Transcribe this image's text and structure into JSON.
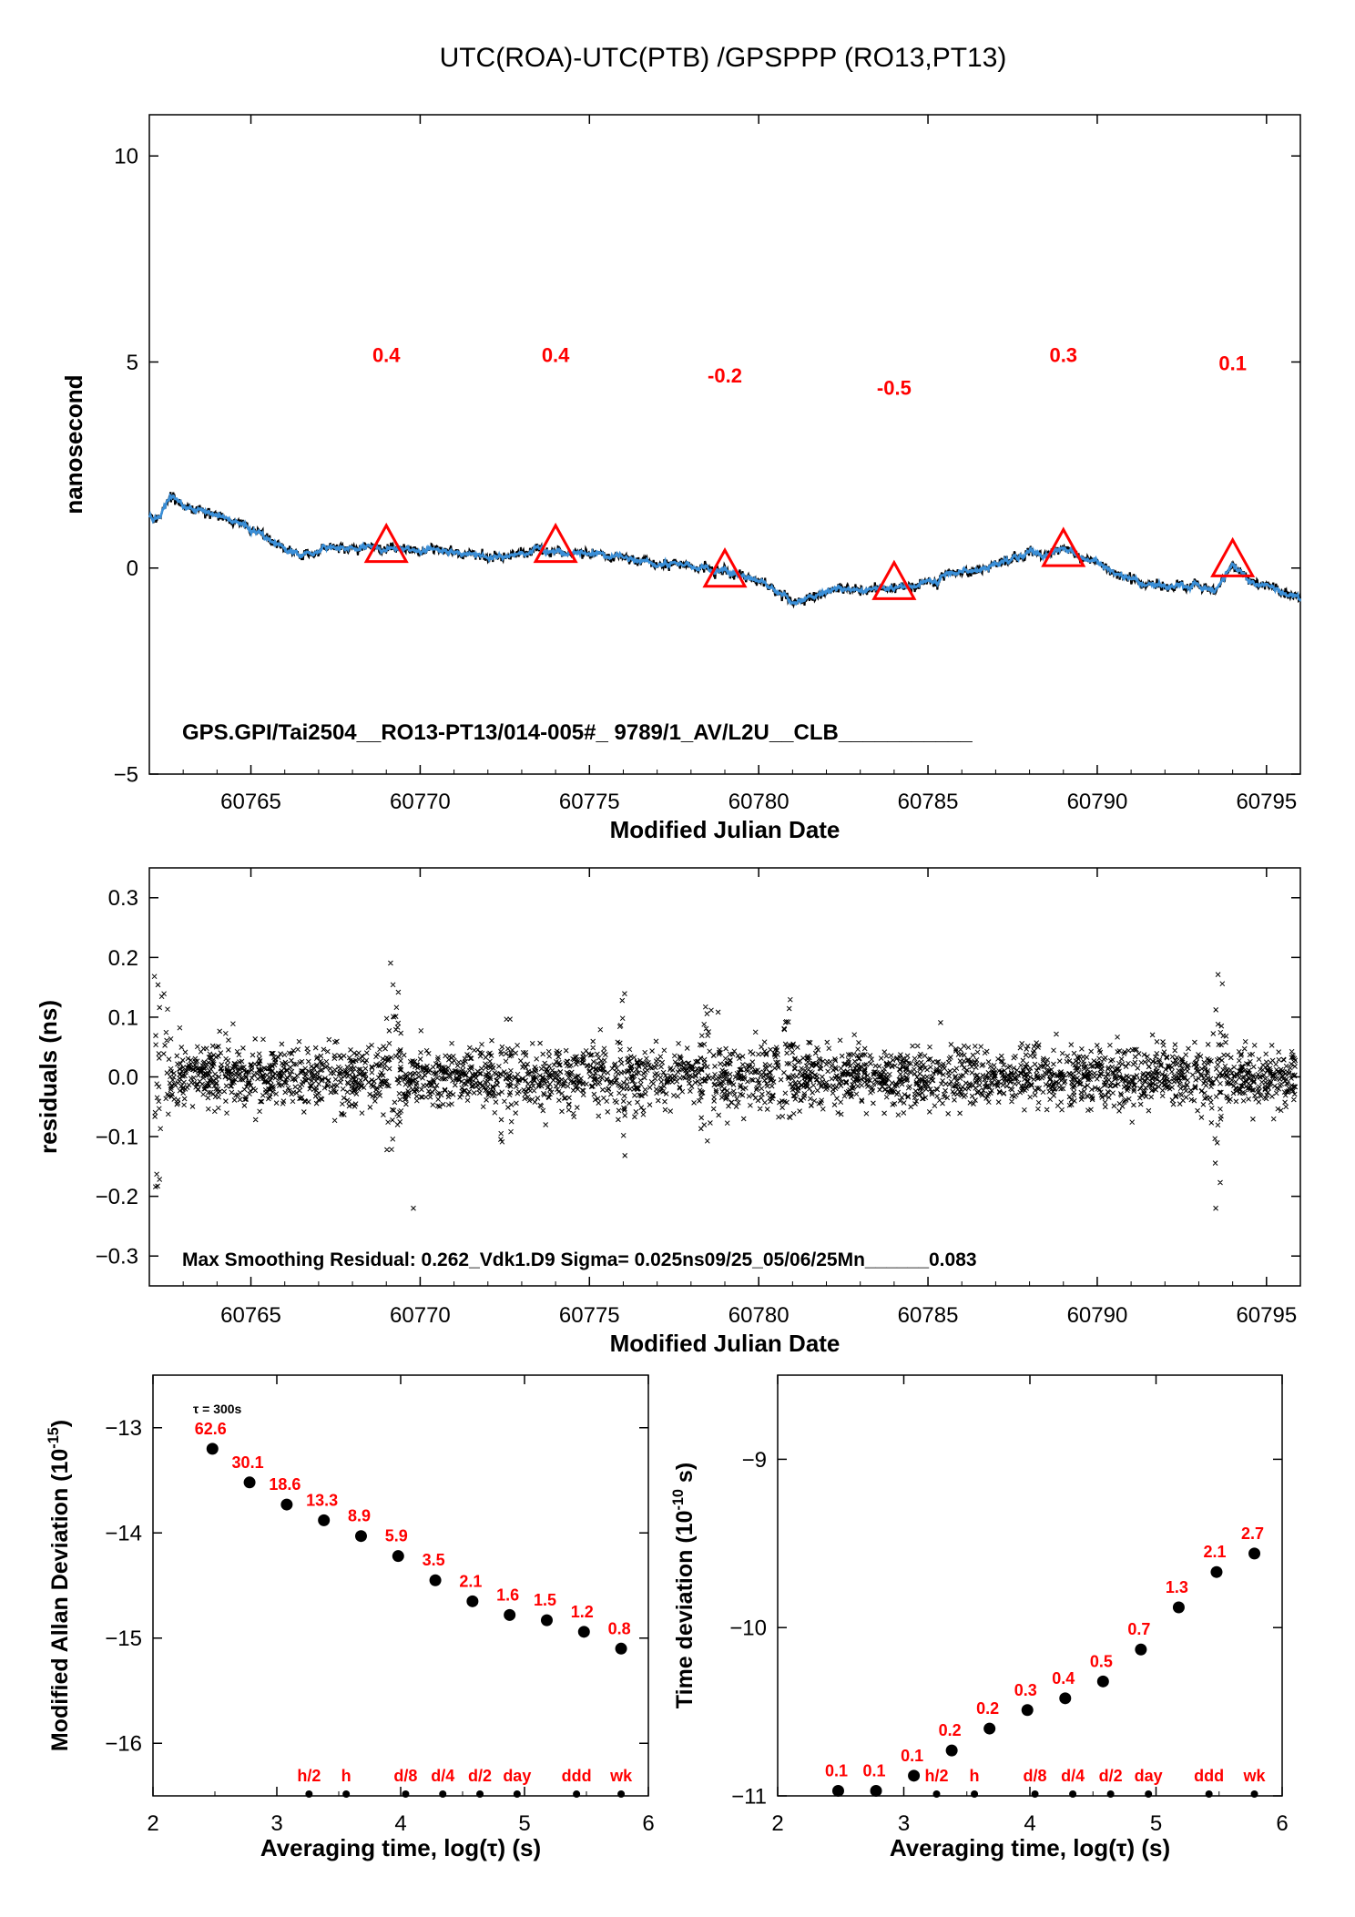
{
  "title": "UTC(ROA)-UTC(PTB)  /GPSPPP  (RO13,PT13)",
  "chart_data": [
    {
      "type": "line",
      "ylabel": "nanosecond",
      "xlabel": "Modified Julian Date",
      "xlim": [
        60762,
        60796
      ],
      "ylim": [
        -5,
        11
      ],
      "xticks": [
        60765,
        60770,
        60775,
        60780,
        60785,
        60790,
        60795
      ],
      "yticks": [
        -5,
        0,
        5,
        10
      ],
      "annotation": "GPS.GPI/Tai2504__RO13-PT13/014-005#_  9789/1_AV/L2U__CLB___________",
      "series_colors": {
        "raw": "#000000",
        "smoothed": "#3a8fd8",
        "markers": "#ff0000"
      },
      "trace": {
        "x": [
          60762.0,
          60762.3,
          60762.6,
          60763.5,
          60764.5,
          60765.5,
          60766.5,
          60767.5,
          60768.5,
          60769.5,
          60770.5,
          60771.5,
          60772.5,
          60773.5,
          60774.5,
          60775.5,
          60776.5,
          60777.5,
          60778.5,
          60779.5,
          60780.5,
          60781.0,
          60781.5,
          60782.5,
          60783.5,
          60784.5,
          60785.5,
          60786.5,
          60787.5,
          60788.0,
          60788.5,
          60789.0,
          60789.5,
          60790.5,
          60791.5,
          60792.5,
          60793.5,
          60794.0,
          60794.5,
          60795.5,
          60796.0
        ],
        "y": [
          1.2,
          1.2,
          1.7,
          1.4,
          1.1,
          0.7,
          0.35,
          0.55,
          0.5,
          0.4,
          0.45,
          0.35,
          0.3,
          0.45,
          0.4,
          0.3,
          0.15,
          0.1,
          0.0,
          -0.2,
          -0.55,
          -0.8,
          -0.7,
          -0.55,
          -0.5,
          -0.45,
          -0.2,
          0.0,
          0.25,
          0.35,
          0.3,
          0.5,
          0.3,
          -0.15,
          -0.35,
          -0.45,
          -0.5,
          0.1,
          -0.3,
          -0.6,
          -0.8
        ]
      },
      "markers": [
        {
          "x": 60769,
          "y": 0.45,
          "label": "0.4"
        },
        {
          "x": 60774,
          "y": 0.45,
          "label": "0.4"
        },
        {
          "x": 60779,
          "y": -0.15,
          "label": "-0.2"
        },
        {
          "x": 60784,
          "y": -0.45,
          "label": "-0.5"
        },
        {
          "x": 60789,
          "y": 0.35,
          "label": "0.3"
        },
        {
          "x": 60794,
          "y": 0.1,
          "label": "0.1"
        }
      ],
      "marker_label_y": [
        5.0,
        5.0,
        4.5,
        4.2,
        5.0,
        4.8
      ]
    },
    {
      "type": "scatter",
      "ylabel": "residuals (ns)",
      "xlabel": "Modified Julian Date",
      "xlim": [
        60762,
        60796
      ],
      "ylim": [
        -0.35,
        0.35
      ],
      "xticks": [
        60765,
        60770,
        60775,
        60780,
        60785,
        60790,
        60795
      ],
      "yticks": [
        -0.3,
        -0.2,
        -0.1,
        0.0,
        0.1,
        0.2,
        0.3
      ],
      "ytick_labels": [
        "−0.3",
        "−0.2",
        "−0.1",
        "0.0",
        "0.1",
        "0.2",
        "0.3"
      ],
      "annotation": "Max Smoothing Residual: 0.262_Vdk1.D9  Sigma= 0.025ns09/25_05/06/25Mn______0.083",
      "sigma_ns": 0.025,
      "max_residual_ns": 0.262,
      "bursts": [
        {
          "x": 60762.3,
          "amp": 0.26
        },
        {
          "x": 60769.2,
          "amp": 0.14
        },
        {
          "x": 60772.5,
          "amp": 0.09
        },
        {
          "x": 60776.0,
          "amp": 0.1
        },
        {
          "x": 60778.5,
          "amp": 0.14
        },
        {
          "x": 60780.8,
          "amp": 0.12
        },
        {
          "x": 60793.6,
          "amp": 0.14
        }
      ],
      "outliers": [
        {
          "x": 60769.8,
          "y": -0.22
        },
        {
          "x": 60793.5,
          "y": -0.22
        }
      ]
    },
    {
      "type": "scatter",
      "ylabel": "Modified Allan Deviation",
      "ylabel_unit": "(10",
      "ylabel_exp": "-15",
      "ylabel_close": ")",
      "xlabel": "Averaging time, log(τ) (s)",
      "xlim": [
        2,
        6
      ],
      "ylim": [
        -16.5,
        -12.5
      ],
      "xticks": [
        2,
        3,
        4,
        5,
        6
      ],
      "yticks": [
        -16,
        -15,
        -14,
        -13
      ],
      "ytick_labels": [
        "−16",
        "−15",
        "−14",
        "−13"
      ],
      "note": "τ = 300s",
      "x": [
        2.48,
        2.78,
        3.08,
        3.38,
        3.68,
        3.98,
        4.28,
        4.58,
        4.88,
        5.18,
        5.48,
        5.78
      ],
      "y": [
        -13.2,
        -13.52,
        -13.73,
        -13.88,
        -14.03,
        -14.22,
        -14.45,
        -14.65,
        -14.78,
        -14.83,
        -14.94,
        -15.1
      ],
      "point_labels": [
        "62.6",
        "30.1",
        "18.6",
        "13.3",
        "8.9",
        "5.9",
        "3.5",
        "2.1",
        "1.6",
        "1.5",
        "1.2",
        "0.8"
      ],
      "time_markers": [
        {
          "label": "h/2",
          "x": 3.26
        },
        {
          "label": "h",
          "x": 3.56
        },
        {
          "label": "d/8",
          "x": 4.04
        },
        {
          "label": "d/4",
          "x": 4.34
        },
        {
          "label": "d/2",
          "x": 4.64
        },
        {
          "label": "day",
          "x": 4.94
        },
        {
          "label": "ddd",
          "x": 5.42
        },
        {
          "label": "wk",
          "x": 5.78
        }
      ]
    },
    {
      "type": "scatter",
      "ylabel": "Time deviation",
      "ylabel_unit": "(10",
      "ylabel_exp": "-10",
      "ylabel_close": " s)",
      "xlabel": "Averaging time, log(τ) (s)",
      "xlim": [
        2,
        6
      ],
      "ylim": [
        -11,
        -8.5
      ],
      "xticks": [
        2,
        3,
        4,
        5,
        6
      ],
      "yticks": [
        -11,
        -10,
        -9
      ],
      "ytick_labels": [
        "−11",
        "−10",
        "−9"
      ],
      "x": [
        2.48,
        2.78,
        3.08,
        3.38,
        3.68,
        3.98,
        4.28,
        4.58,
        4.88,
        5.18,
        5.48,
        5.78
      ],
      "y": [
        -10.97,
        -10.97,
        -10.88,
        -10.73,
        -10.6,
        -10.49,
        -10.42,
        -10.32,
        -10.13,
        -9.88,
        -9.67,
        -9.56
      ],
      "point_labels": [
        "0.1",
        "0.1",
        "0.1",
        "0.2",
        "0.2",
        "0.3",
        "0.4",
        "0.5",
        "0.7",
        "1.3",
        "2.1",
        "2.7"
      ],
      "time_markers": [
        {
          "label": "h/2",
          "x": 3.26
        },
        {
          "label": "h",
          "x": 3.56
        },
        {
          "label": "d/8",
          "x": 4.04
        },
        {
          "label": "d/4",
          "x": 4.34
        },
        {
          "label": "d/2",
          "x": 4.64
        },
        {
          "label": "day",
          "x": 4.94
        },
        {
          "label": "ddd",
          "x": 5.42
        },
        {
          "label": "wk",
          "x": 5.78
        }
      ]
    }
  ]
}
